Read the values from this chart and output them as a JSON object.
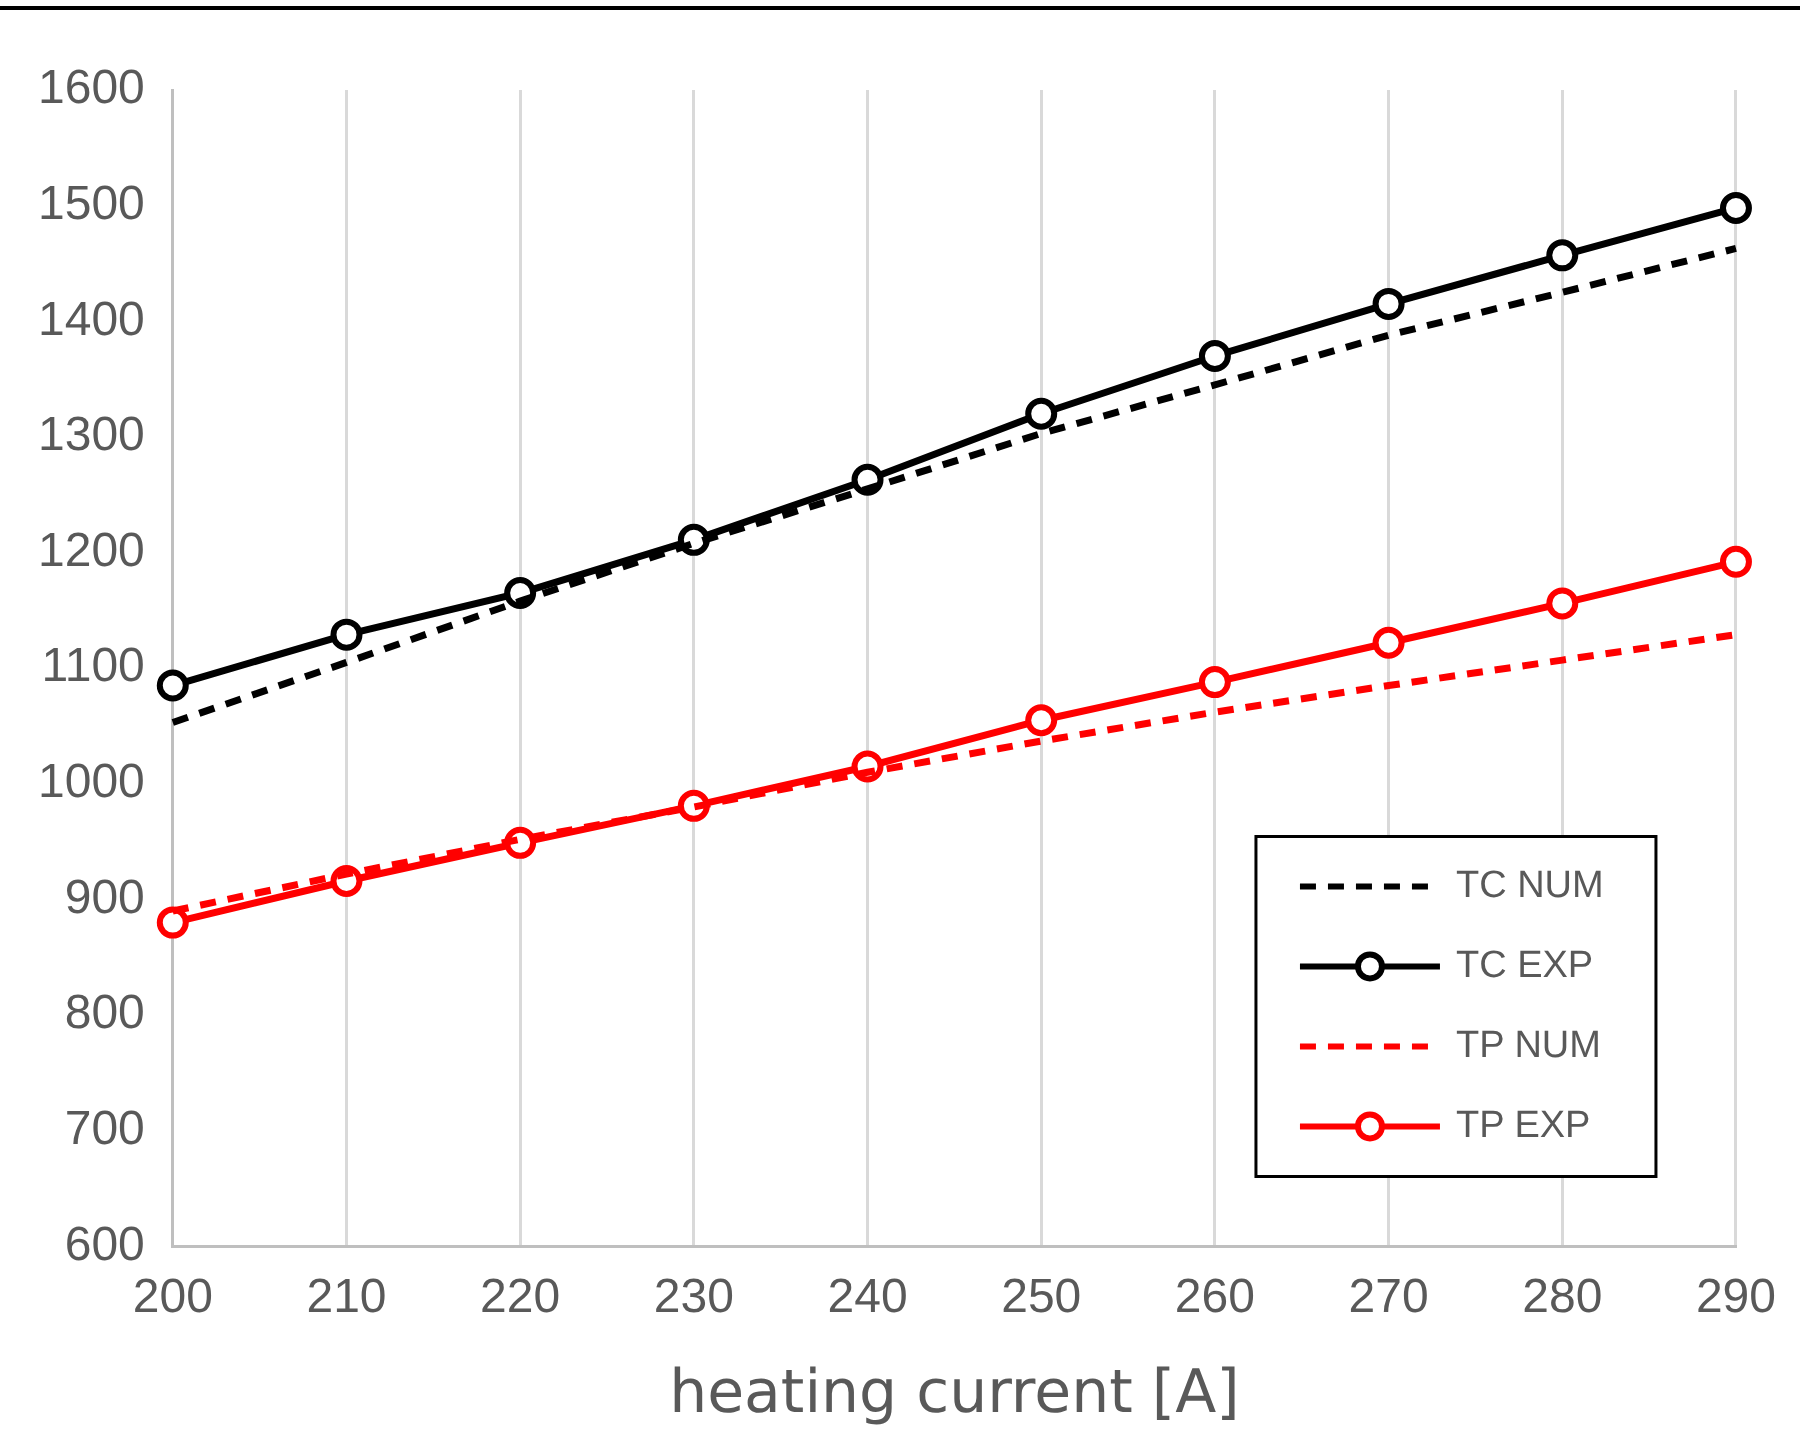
{
  "chart_data": {
    "type": "line",
    "xlabel": "heating current [A]",
    "categories": [
      "200",
      "210",
      "220",
      "230",
      "240",
      "250",
      "260",
      "270",
      "280",
      "290"
    ],
    "ylim": [
      600,
      1600
    ],
    "yticks": [
      600,
      700,
      800,
      900,
      1000,
      1100,
      1200,
      1300,
      1400,
      1500,
      1600
    ],
    "grid": "x",
    "legend": "bottom right",
    "series": [
      {
        "name": "TC NUM",
        "color": "#000000",
        "line_style": "dashed",
        "marker": "none",
        "values": [
          1053,
          1105,
          1158,
          1208,
          1255,
          1303,
          1345,
          1388,
          1425,
          1463
        ]
      },
      {
        "name": "TC EXP",
        "color": "#000000",
        "line_style": "solid",
        "marker": "circle",
        "values": [
          1085,
          1129,
          1165,
          1211,
          1263,
          1320,
          1370,
          1415,
          1457,
          1498
        ]
      },
      {
        "name": "TP NUM",
        "color": "#ff0000",
        "line_style": "dashed",
        "marker": "none",
        "values": [
          890,
          922,
          952,
          980,
          1010,
          1037,
          1062,
          1085,
          1107,
          1129
        ]
      },
      {
        "name": "TP EXP",
        "color": "#ff0000",
        "line_style": "solid",
        "marker": "circle",
        "values": [
          880,
          916,
          949,
          981,
          1015,
          1055,
          1088,
          1122,
          1156,
          1192
        ]
      }
    ]
  }
}
